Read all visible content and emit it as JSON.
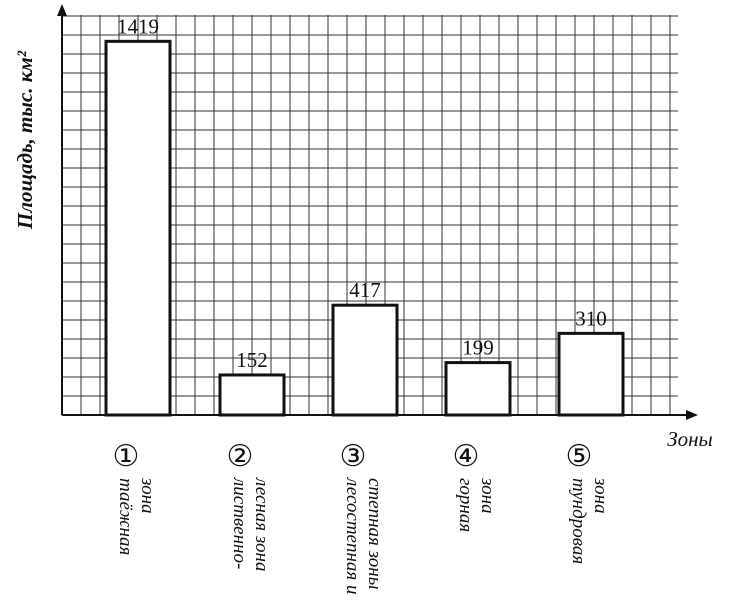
{
  "chart_data": {
    "type": "bar",
    "y_label": "Площадь, тыс. км²",
    "x_label": "Зоны",
    "category_numbers": [
      "①",
      "②",
      "③",
      "④",
      "⑤"
    ],
    "categories": [
      [
        "таёжная",
        "зона"
      ],
      [
        "лиственно-",
        "лесная зона"
      ],
      [
        "лесостепная и",
        "степная зоны"
      ],
      [
        "горная",
        "зона"
      ],
      [
        "тундровая",
        "зона"
      ]
    ],
    "values": [
      1419,
      152,
      417,
      199,
      310
    ],
    "color": "#ffffff",
    "ylim": [
      0,
      1500
    ],
    "grid": true
  }
}
